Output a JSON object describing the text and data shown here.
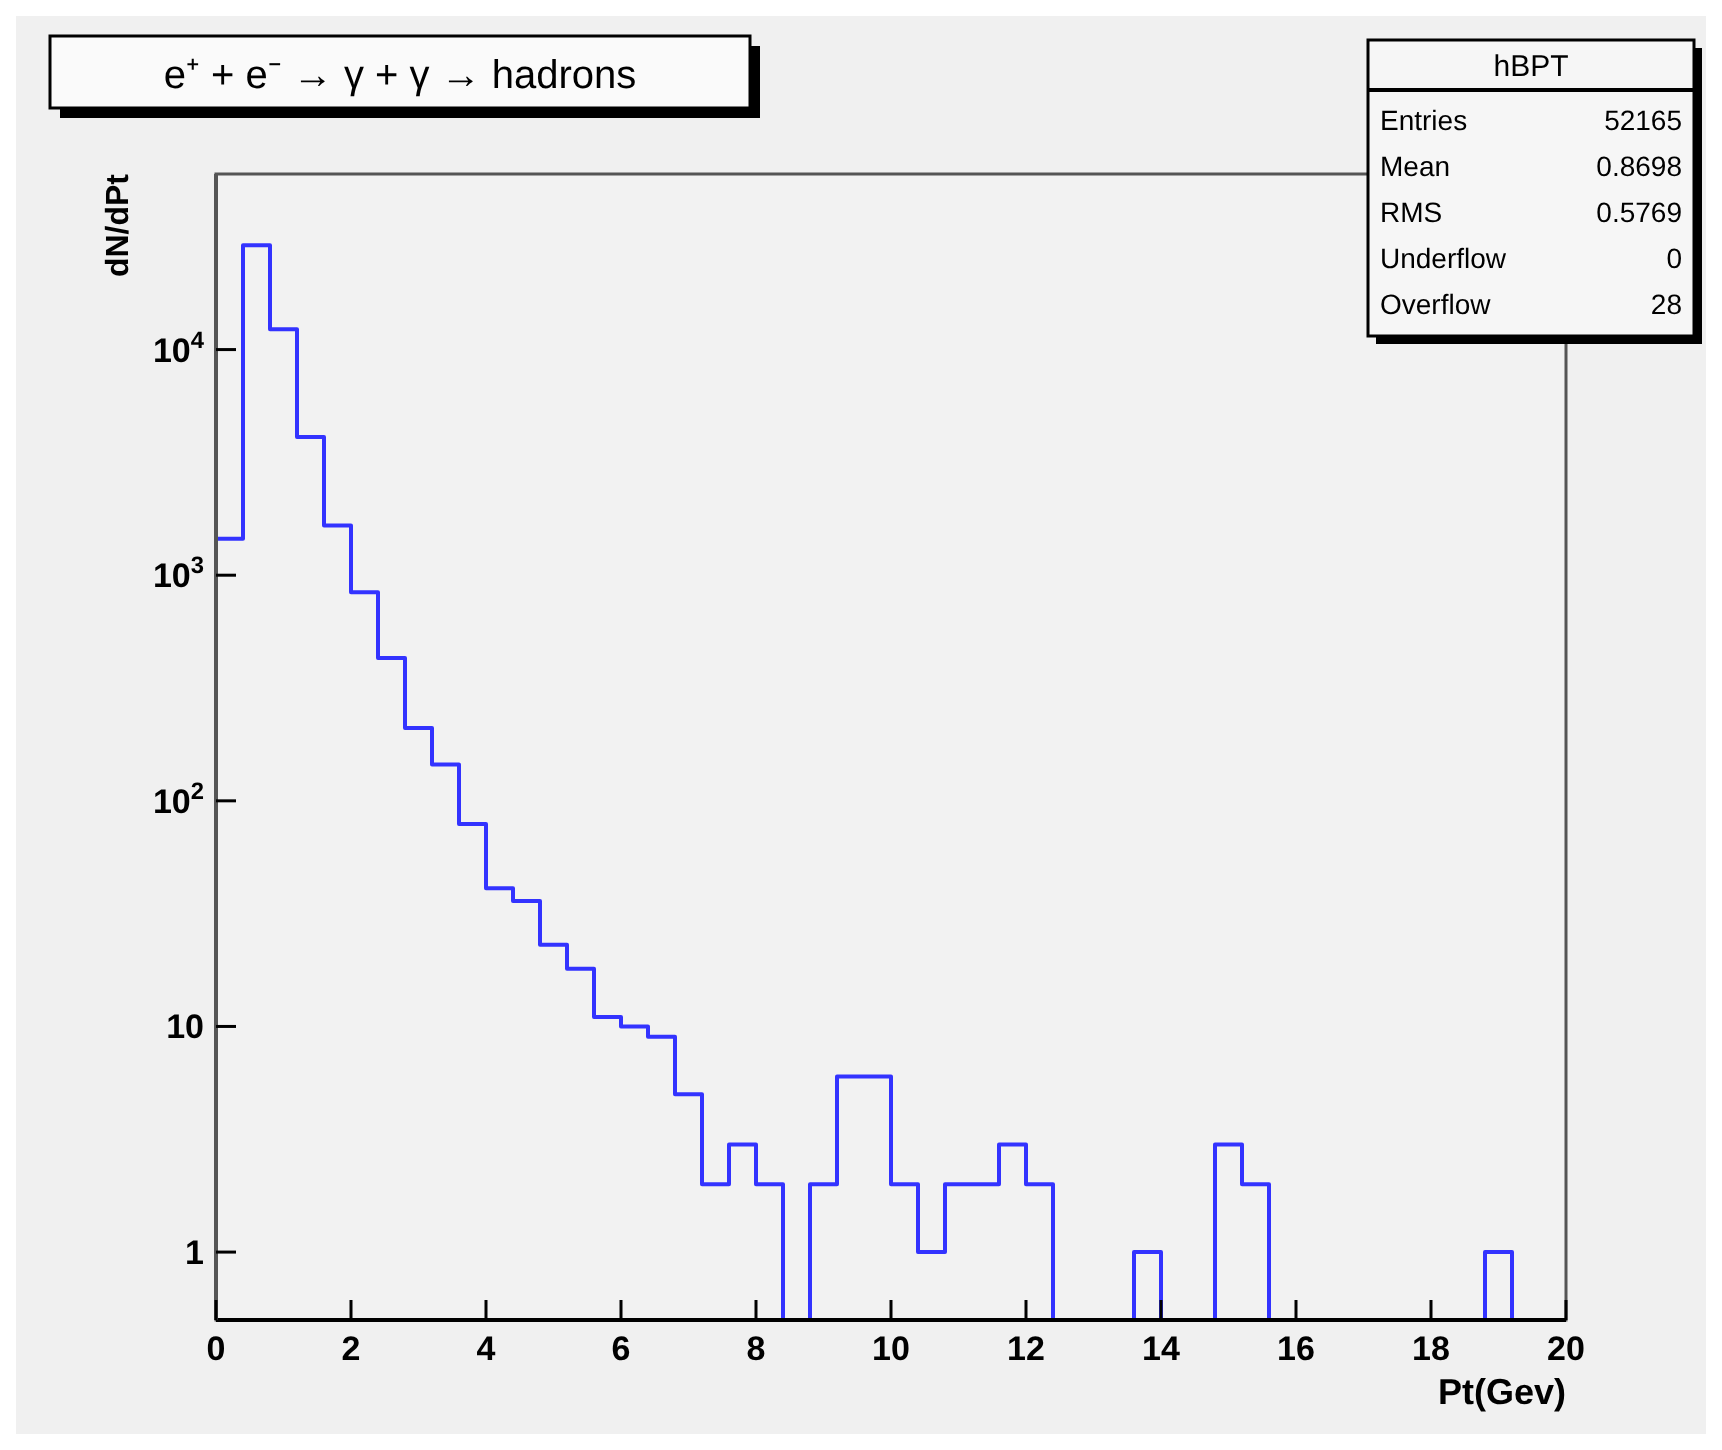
{
  "chart_data": {
    "type": "histogram",
    "title": "e⁺ + e⁻ → γ + γ → hadrons",
    "xlabel": "Pt(Gev)",
    "ylabel": "dN/dPt",
    "bins": [
      0,
      0.4,
      0.8,
      1.2,
      1.6,
      2,
      2.4,
      2.8,
      3.2,
      3.6,
      4,
      4.4,
      4.8,
      5.2,
      5.6,
      6,
      6.4,
      6.8,
      7.2,
      7.6,
      8,
      8.4,
      8.8,
      9.2,
      9.6,
      10,
      10.4,
      10.8,
      11.2,
      11.6,
      12,
      12.4,
      12.8,
      13.2,
      13.6,
      14,
      14.4,
      14.8,
      15.2,
      15.6,
      16,
      16.4,
      16.8,
      17.2,
      17.6,
      18,
      18.4,
      18.8,
      19.2,
      19.6,
      20
    ],
    "values": [
      1450,
      29000,
      12300,
      4100,
      1660,
      840,
      430,
      210,
      145,
      79,
      41,
      36,
      23,
      18,
      11,
      10,
      9,
      5,
      2,
      3,
      2,
      null,
      2,
      6,
      6,
      2,
      1,
      2,
      2,
      3,
      2,
      null,
      null,
      null,
      1,
      null,
      null,
      3,
      2,
      null,
      null,
      null,
      null,
      null,
      null,
      null,
      null,
      1,
      null,
      null
    ],
    "color": "#3333ff",
    "xlim": [
      0,
      20
    ],
    "xticks": [
      0,
      2,
      4,
      6,
      8,
      10,
      12,
      14,
      16,
      18,
      20
    ],
    "ylim": [
      0.5,
      60000
    ],
    "log": "y",
    "yticks": [
      1,
      10,
      {
        "value": 100,
        "label": "10$^{2}$"
      },
      {
        "value": 1000,
        "label": "10$^{3}$"
      },
      {
        "value": 10000,
        "label": "10$^{4}$"
      }
    ],
    "grid": false,
    "annotations": [
      "hBPT",
      "Entries",
      "52165",
      "Mean",
      "0.8698",
      "RMS",
      "0.5769",
      "Underflow",
      "0",
      "Overflow",
      "28"
    ]
  }
}
